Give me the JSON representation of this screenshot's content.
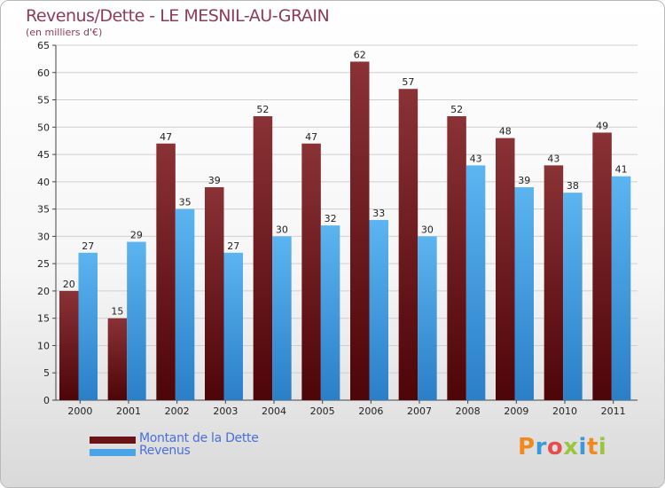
{
  "chart_data": {
    "type": "bar",
    "title": "Revenus/Dette - LE MESNIL-AU-GRAIN",
    "subtitle": "(en milliers d'€)",
    "categories": [
      "2000",
      "2001",
      "2002",
      "2003",
      "2004",
      "2005",
      "2006",
      "2007",
      "2008",
      "2009",
      "2010",
      "2011"
    ],
    "series": [
      {
        "name": "Montant de la Dette",
        "color": "#7a1c1f",
        "values": [
          20,
          15,
          47,
          39,
          52,
          47,
          62,
          57,
          52,
          48,
          43,
          49
        ]
      },
      {
        "name": "Revenus",
        "color": "#4aa3e6",
        "values": [
          27,
          29,
          35,
          27,
          30,
          32,
          33,
          30,
          43,
          39,
          38,
          41
        ]
      }
    ],
    "ylim": [
      0,
      65
    ],
    "yticks": [
      0,
      5,
      10,
      15,
      20,
      25,
      30,
      35,
      40,
      45,
      50,
      55,
      60,
      65
    ],
    "grid": true,
    "legend_position": "bottom-left"
  },
  "logo": {
    "text": "Proxiti",
    "colors": [
      "#f08a1e",
      "#3a9ad9",
      "#e84d4d",
      "#9bc53d",
      "#3a9ad9",
      "#f08a1e",
      "#9bc53d"
    ]
  }
}
